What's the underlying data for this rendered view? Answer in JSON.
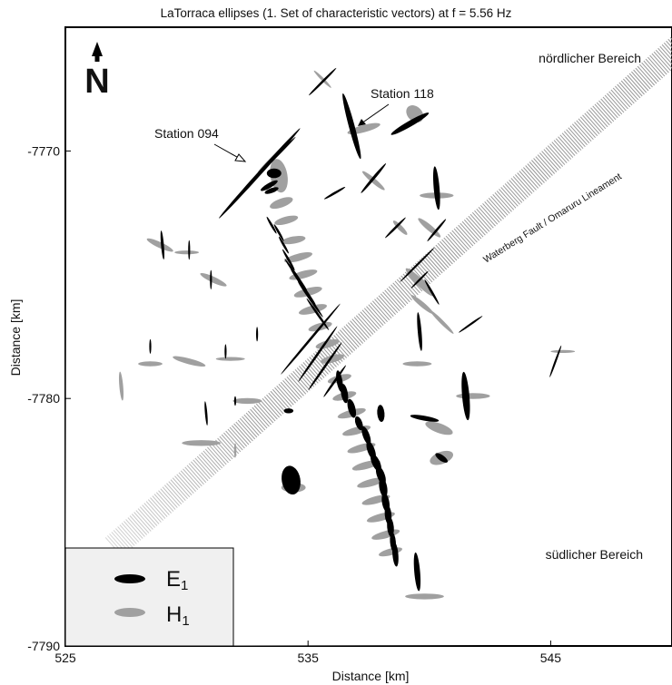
{
  "chart_data": {
    "type": "scatter",
    "title": "LaTorraca ellipses (1. Set of characteristic vectors) at f = 5.56 Hz",
    "xlabel": "Distance [km]",
    "ylabel": "Distance [km]",
    "xlim": [
      525,
      550
    ],
    "ylim": [
      -7790,
      -7765
    ],
    "x_ticks": [
      525,
      535,
      545
    ],
    "y_ticks": [
      -7770,
      -7780,
      -7790
    ],
    "x_tick_labels": [
      "525",
      "535",
      "545"
    ],
    "y_tick_labels": [
      "-7770",
      "-7780",
      "-7790"
    ],
    "north_arrow_label": "N",
    "region_labels": {
      "north": "nördlicher Bereich",
      "south": "südlicher Bereich"
    },
    "fault_label": "Waterberg Fault / Omaruru Lineament",
    "station_labels": [
      {
        "text": "Station 094",
        "x": 533.5,
        "y": -7770.3
      },
      {
        "text": "Station 118",
        "x": 536.9,
        "y": -7768.2
      }
    ],
    "legend": {
      "placement": "bottom-left",
      "entries": [
        {
          "symbol": "E",
          "subscript": "1",
          "color": "#000000"
        },
        {
          "symbol": "H",
          "subscript": "1",
          "color": "#a0a0a0"
        }
      ]
    },
    "colors": {
      "E1": "#000000",
      "H1": "#a0a0a0",
      "fault": "#999999"
    },
    "series": [
      {
        "name": "E1",
        "ellipses": [
          [
            533.0,
            -7770.9,
            2.5,
            0.08,
            48
          ],
          [
            533.5,
            -7770.4,
            1.4,
            0.05,
            45
          ],
          [
            533.6,
            -7770.9,
            0.3,
            0.2,
            0
          ],
          [
            533.4,
            -7771.4,
            0.4,
            0.1,
            30
          ],
          [
            533.5,
            -7771.6,
            0.3,
            0.1,
            20
          ],
          [
            535.6,
            -7767.2,
            0.8,
            0.05,
            45
          ],
          [
            536.8,
            -7769.0,
            1.4,
            0.12,
            -75
          ],
          [
            539.2,
            -7768.9,
            0.9,
            0.12,
            30
          ],
          [
            537.7,
            -7771.1,
            0.8,
            0.06,
            50
          ],
          [
            538.6,
            -7773.1,
            0.6,
            0.05,
            45
          ],
          [
            540.3,
            -7771.5,
            0.9,
            0.12,
            -85
          ],
          [
            540.3,
            -7773.2,
            0.6,
            0.05,
            50
          ],
          [
            536.1,
            -7771.7,
            0.5,
            0.05,
            30
          ],
          [
            533.5,
            -7773.0,
            0.4,
            0.05,
            -60
          ],
          [
            533.8,
            -7773.3,
            0.4,
            0.05,
            -60
          ],
          [
            534.0,
            -7773.8,
            0.4,
            0.05,
            -60
          ],
          [
            534.2,
            -7774.4,
            0.5,
            0.05,
            -60
          ],
          [
            534.5,
            -7775.0,
            0.8,
            0.05,
            -55
          ],
          [
            534.8,
            -7775.5,
            0.9,
            0.05,
            -55
          ],
          [
            535.1,
            -7776.0,
            0.9,
            0.05,
            -55
          ],
          [
            535.4,
            -7776.6,
            0.8,
            0.05,
            -55
          ],
          [
            535.1,
            -7777.6,
            1.9,
            0.05,
            50
          ],
          [
            535.4,
            -7778.2,
            1.4,
            0.05,
            55
          ],
          [
            535.7,
            -7778.7,
            1.2,
            0.05,
            55
          ],
          [
            536.1,
            -7779.3,
            0.8,
            0.05,
            55
          ],
          [
            536.3,
            -7779.3,
            0.45,
            0.12,
            -80
          ],
          [
            536.5,
            -7779.8,
            0.4,
            0.14,
            -80
          ],
          [
            536.8,
            -7780.4,
            0.4,
            0.15,
            -75
          ],
          [
            537.1,
            -7781.0,
            0.3,
            0.14,
            -70
          ],
          [
            537.4,
            -7781.5,
            0.4,
            0.14,
            -70
          ],
          [
            537.6,
            -7782.1,
            0.4,
            0.15,
            -70
          ],
          [
            537.8,
            -7782.6,
            0.4,
            0.16,
            -65
          ],
          [
            538.0,
            -7783.1,
            0.4,
            0.16,
            -70
          ],
          [
            538.1,
            -7783.6,
            0.4,
            0.16,
            -80
          ],
          [
            538.2,
            -7784.2,
            0.4,
            0.15,
            -80
          ],
          [
            538.3,
            -7784.7,
            0.4,
            0.14,
            -85
          ],
          [
            538.4,
            -7785.2,
            0.4,
            0.14,
            -85
          ],
          [
            538.5,
            -7785.8,
            0.4,
            0.12,
            -85
          ],
          [
            538.6,
            -7786.3,
            0.5,
            0.12,
            -85
          ],
          [
            538.0,
            -7780.6,
            0.35,
            0.15,
            -85
          ],
          [
            539.6,
            -7777.3,
            0.8,
            0.08,
            -85
          ],
          [
            539.5,
            -7774.6,
            1.0,
            0.04,
            45
          ],
          [
            539.6,
            -7775.2,
            0.5,
            0.04,
            45
          ],
          [
            541.5,
            -7779.9,
            1.0,
            0.15,
            -85
          ],
          [
            541.7,
            -7777.0,
            0.6,
            0.04,
            35
          ],
          [
            545.2,
            -7778.5,
            0.7,
            0.04,
            70
          ],
          [
            534.2,
            -7780.5,
            0.2,
            0.1,
            0
          ],
          [
            534.3,
            -7783.3,
            0.6,
            0.38,
            -80
          ],
          [
            539.8,
            -7780.8,
            0.6,
            0.1,
            -10
          ],
          [
            540.5,
            -7782.4,
            0.3,
            0.12,
            -35
          ],
          [
            539.5,
            -7787.0,
            0.8,
            0.12,
            -85
          ],
          [
            529.0,
            -7773.8,
            0.6,
            0.06,
            -85
          ],
          [
            530.1,
            -7774.0,
            0.4,
            0.04,
            -90
          ],
          [
            531.0,
            -7775.2,
            0.4,
            0.04,
            -90
          ],
          [
            531.6,
            -7778.1,
            0.3,
            0.04,
            -90
          ],
          [
            528.5,
            -7777.9,
            0.3,
            0.04,
            -90
          ],
          [
            532.0,
            -7780.1,
            0.2,
            0.04,
            -90
          ],
          [
            532.9,
            -7777.4,
            0.3,
            0.04,
            -90
          ],
          [
            530.8,
            -7780.6,
            0.5,
            0.05,
            -85
          ],
          [
            540.1,
            -7775.7,
            0.6,
            0.05,
            -60
          ]
        ]
      },
      {
        "name": "H1",
        "ellipses": [
          [
            533.5,
            -7770.3,
            0.8,
            0.05,
            45
          ],
          [
            533.8,
            -7771.0,
            0.7,
            0.35,
            -80
          ],
          [
            533.9,
            -7772.1,
            0.5,
            0.18,
            20
          ],
          [
            534.1,
            -7772.8,
            0.5,
            0.15,
            15
          ],
          [
            534.4,
            -7773.6,
            0.5,
            0.15,
            10
          ],
          [
            534.6,
            -7774.3,
            0.6,
            0.15,
            15
          ],
          [
            534.8,
            -7775.0,
            0.6,
            0.15,
            15
          ],
          [
            535.0,
            -7775.7,
            0.6,
            0.16,
            15
          ],
          [
            535.2,
            -7776.4,
            0.6,
            0.16,
            15
          ],
          [
            535.5,
            -7777.1,
            0.5,
            0.15,
            15
          ],
          [
            535.8,
            -7777.8,
            0.5,
            0.15,
            15
          ],
          [
            536.0,
            -7778.4,
            0.5,
            0.15,
            15
          ],
          [
            536.3,
            -7779.2,
            0.5,
            0.15,
            15
          ],
          [
            536.5,
            -7779.9,
            0.5,
            0.15,
            15
          ],
          [
            536.8,
            -7780.6,
            0.6,
            0.15,
            15
          ],
          [
            537.0,
            -7781.3,
            0.6,
            0.15,
            15
          ],
          [
            537.2,
            -7782.0,
            0.6,
            0.15,
            15
          ],
          [
            537.4,
            -7782.7,
            0.6,
            0.15,
            15
          ],
          [
            537.6,
            -7783.4,
            0.6,
            0.15,
            15
          ],
          [
            537.8,
            -7784.1,
            0.6,
            0.15,
            15
          ],
          [
            538.0,
            -7784.8,
            0.6,
            0.15,
            15
          ],
          [
            538.2,
            -7785.5,
            0.6,
            0.15,
            15
          ],
          [
            538.4,
            -7786.2,
            0.5,
            0.14,
            15
          ],
          [
            535.6,
            -7767.1,
            0.5,
            0.06,
            -45
          ],
          [
            537.3,
            -7769.1,
            0.7,
            0.15,
            15
          ],
          [
            539.4,
            -7768.5,
            0.4,
            0.3,
            -45
          ],
          [
            537.7,
            -7771.2,
            0.6,
            0.1,
            -40
          ],
          [
            538.8,
            -7773.1,
            0.4,
            0.1,
            -45
          ],
          [
            540.3,
            -7771.8,
            0.7,
            0.12,
            0
          ],
          [
            540.0,
            -7773.1,
            0.6,
            0.12,
            -40
          ],
          [
            539.6,
            -7775.3,
            0.8,
            0.15,
            -45
          ],
          [
            539.7,
            -7776.2,
            0.6,
            0.1,
            -40
          ],
          [
            540.5,
            -7776.9,
            0.7,
            0.08,
            -45
          ],
          [
            539.5,
            -7778.6,
            0.6,
            0.1,
            0
          ],
          [
            541.8,
            -7779.9,
            0.7,
            0.12,
            0
          ],
          [
            545.5,
            -7778.1,
            0.5,
            0.06,
            0
          ],
          [
            540.4,
            -7781.2,
            0.6,
            0.2,
            -20
          ],
          [
            540.5,
            -7782.4,
            0.5,
            0.25,
            20
          ],
          [
            539.8,
            -7788.0,
            0.8,
            0.12,
            0
          ],
          [
            534.4,
            -7783.6,
            0.5,
            0.2,
            0
          ],
          [
            528.9,
            -7773.8,
            0.6,
            0.12,
            -25
          ],
          [
            530.0,
            -7774.1,
            0.5,
            0.08,
            0
          ],
          [
            531.1,
            -7775.2,
            0.6,
            0.12,
            -25
          ],
          [
            530.1,
            -7778.5,
            0.7,
            0.12,
            -15
          ],
          [
            531.8,
            -7778.4,
            0.6,
            0.08,
            0
          ],
          [
            532.5,
            -7780.1,
            0.6,
            0.12,
            0
          ],
          [
            530.6,
            -7781.8,
            0.8,
            0.12,
            0
          ],
          [
            527.3,
            -7779.5,
            0.6,
            0.08,
            -85
          ],
          [
            528.5,
            -7778.6,
            0.5,
            0.1,
            0
          ],
          [
            532.0,
            -7782.1,
            0.3,
            0.05,
            -90
          ]
        ]
      }
    ]
  }
}
